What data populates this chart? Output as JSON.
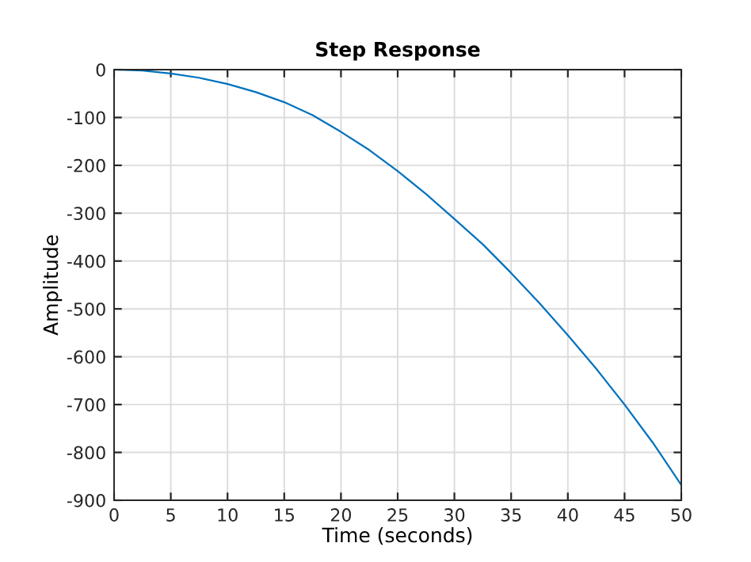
{
  "chart_data": {
    "type": "line",
    "title": "Step Response",
    "xlabel": "Time (seconds)",
    "ylabel": "Amplitude",
    "x": [
      0,
      2.5,
      5,
      7.5,
      10,
      12.5,
      15,
      17.5,
      20,
      22.5,
      25,
      27.5,
      30,
      32.5,
      35,
      37.5,
      40,
      42.5,
      45,
      47.5,
      50
    ],
    "series": [
      {
        "color": "#0072bd",
        "values": [
          0,
          -2,
          -8,
          -17,
          -30,
          -47,
          -68,
          -95,
          -130,
          -168,
          -212,
          -260,
          -312,
          -365,
          -425,
          -488,
          -555,
          -625,
          -700,
          -780,
          -868
        ]
      }
    ],
    "xlim": [
      0,
      50
    ],
    "xticks": [
      0,
      5,
      10,
      15,
      20,
      25,
      30,
      35,
      40,
      45,
      50
    ],
    "ylim": [
      -900,
      0
    ],
    "yticks": [
      -900,
      -800,
      -700,
      -600,
      -500,
      -400,
      -300,
      -200,
      -100,
      0
    ],
    "grid": true,
    "line_style": "solid",
    "marker": "none"
  }
}
